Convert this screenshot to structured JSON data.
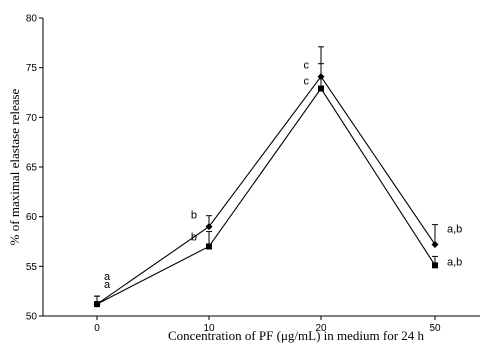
{
  "chart_data": {
    "type": "line",
    "title": "",
    "xlabel": "Concentration of PF (μg/mL) in medium for 24 h",
    "ylabel": "% of maximal elastase release",
    "categories": [
      "0",
      "10",
      "20",
      "50"
    ],
    "ylim": [
      50,
      80
    ],
    "yticks": [
      "50",
      "55",
      "60",
      "65",
      "70",
      "75",
      "80"
    ],
    "grid": false,
    "legend": "none",
    "series": [
      {
        "marker": "diamond",
        "values": [
          51.2,
          59.0,
          74.1,
          57.2
        ],
        "error_upper": [
          52.0,
          60.1,
          77.1,
          59.2
        ],
        "labels": [
          "a",
          "b",
          "c",
          "a,b"
        ]
      },
      {
        "marker": "square",
        "values": [
          51.2,
          57.0,
          72.9,
          55.1
        ],
        "error_upper": [
          52.0,
          58.5,
          75.4,
          56.0
        ],
        "labels": [
          "a",
          "b",
          "c",
          "a,b"
        ]
      }
    ]
  }
}
